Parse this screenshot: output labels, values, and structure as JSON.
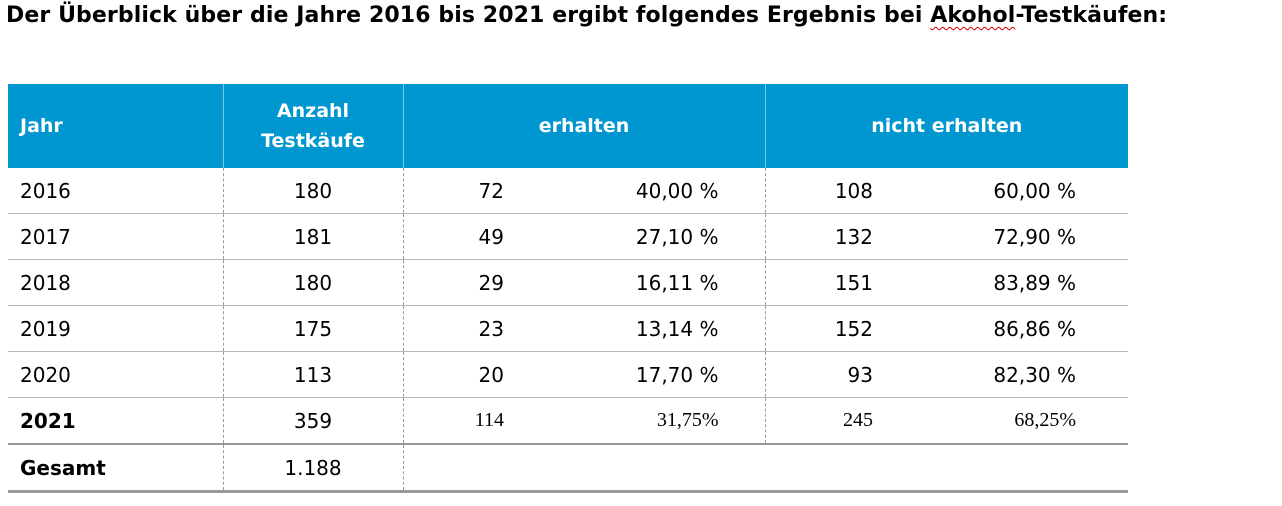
{
  "title": {
    "before": "Der Überblick über die Jahre 2016 bis 2021 ergibt folgendes Ergebnis bei ",
    "flagged_word": "Akohol",
    "after": "-Testkäufen:"
  },
  "table": {
    "headers": {
      "jahr": "Jahr",
      "anzahl_line1": "Anzahl",
      "anzahl_line2": "Testkäufe",
      "erhalten": "erhalten",
      "nicht_erhalten": "nicht erhalten"
    },
    "rows": [
      {
        "jahr": "2016",
        "anzahl": "180",
        "erh_n": "72",
        "erh_p": "40,00 %",
        "nerh_n": "108",
        "nerh_p": "60,00 %"
      },
      {
        "jahr": "2017",
        "anzahl": "181",
        "erh_n": "49",
        "erh_p": "27,10 %",
        "nerh_n": "132",
        "nerh_p": "72,90 %"
      },
      {
        "jahr": "2018",
        "anzahl": "180",
        "erh_n": "29",
        "erh_p": "16,11 %",
        "nerh_n": "151",
        "nerh_p": "83,89 %"
      },
      {
        "jahr": "2019",
        "anzahl": "175",
        "erh_n": "23",
        "erh_p": "13,14 %",
        "nerh_n": "152",
        "nerh_p": "86,86 %"
      },
      {
        "jahr": "2020",
        "anzahl": "113",
        "erh_n": "20",
        "erh_p": "17,70 %",
        "nerh_n": "93",
        "nerh_p": "82,30 %"
      },
      {
        "jahr": "2021",
        "anzahl": "359",
        "erh_n": "114",
        "erh_p": "31,75%",
        "nerh_n": "245",
        "nerh_p": "68,25%"
      }
    ],
    "total": {
      "label": "Gesamt",
      "anzahl": "1.188"
    }
  },
  "colors": {
    "header_bg": "#0096cf",
    "header_text": "#ffffff",
    "spellcheck": "#d40000"
  }
}
